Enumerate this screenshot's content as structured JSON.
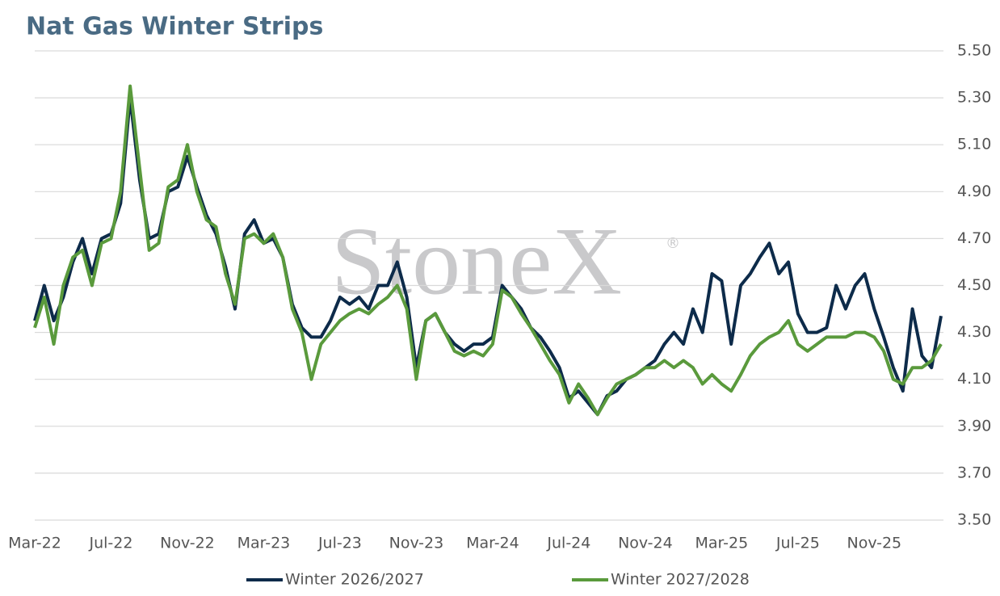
{
  "chart_data": {
    "type": "line",
    "title": "Nat Gas Winter Strips",
    "watermark": {
      "text": "StoneX",
      "mark": "®"
    },
    "categories": [
      "Mar-22",
      null,
      null,
      null,
      null,
      null,
      null,
      null,
      "Jul-22",
      null,
      null,
      null,
      null,
      null,
      null,
      null,
      "Nov-22",
      null,
      null,
      null,
      null,
      null,
      null,
      null,
      "Mar-23",
      null,
      null,
      null,
      null,
      null,
      null,
      null,
      "Jul-23",
      null,
      null,
      null,
      null,
      null,
      null,
      null,
      "Nov-23",
      null,
      null,
      null,
      null,
      null,
      null,
      null,
      "Mar-24",
      null,
      null,
      null,
      null,
      null,
      null,
      null,
      "Jul-24",
      null,
      null,
      null,
      null,
      null,
      null,
      null,
      "Nov-24",
      null,
      null,
      null,
      null,
      null,
      null,
      null,
      "Mar-25",
      null,
      null,
      null,
      null,
      null,
      null,
      null,
      "Jul-25",
      null,
      null,
      null,
      null,
      null,
      null,
      null,
      "Nov-25",
      null,
      null,
      null,
      null,
      null,
      null,
      null
    ],
    "series": [
      {
        "name": "Winter 2026/2027",
        "color": "#0d2b4a",
        "values": [
          4.35,
          4.5,
          4.35,
          4.45,
          4.6,
          4.7,
          4.55,
          4.7,
          4.72,
          4.85,
          5.3,
          4.95,
          4.7,
          4.72,
          4.9,
          4.92,
          5.05,
          4.92,
          4.8,
          4.72,
          4.58,
          4.4,
          4.72,
          4.78,
          4.68,
          4.7,
          4.62,
          4.42,
          4.32,
          4.28,
          4.28,
          4.35,
          4.45,
          4.42,
          4.45,
          4.4,
          4.5,
          4.5,
          4.6,
          4.45,
          4.15,
          4.35,
          4.38,
          4.3,
          4.25,
          4.22,
          4.25,
          4.25,
          4.28,
          4.5,
          4.45,
          4.4,
          4.32,
          4.28,
          4.22,
          4.15,
          4.02,
          4.05,
          4.0,
          3.95,
          4.03,
          4.05,
          4.1,
          4.12,
          4.15,
          4.18,
          4.25,
          4.3,
          4.25,
          4.4,
          4.3,
          4.55,
          4.52,
          4.25,
          4.5,
          4.55,
          4.62,
          4.68,
          4.55,
          4.6,
          4.38,
          4.3,
          4.3,
          4.32,
          4.5,
          4.4,
          4.5,
          4.55,
          4.4,
          4.28,
          4.15,
          4.05,
          4.4,
          4.2,
          4.15,
          4.37
        ]
      },
      {
        "name": "Winter 2027/2028",
        "color": "#5a9a3c",
        "values": [
          4.32,
          4.45,
          4.25,
          4.5,
          4.62,
          4.65,
          4.5,
          4.68,
          4.7,
          4.9,
          5.35,
          5.0,
          4.65,
          4.68,
          4.92,
          4.95,
          5.1,
          4.9,
          4.78,
          4.75,
          4.55,
          4.42,
          4.7,
          4.72,
          4.68,
          4.72,
          4.62,
          4.4,
          4.3,
          4.1,
          4.25,
          4.3,
          4.35,
          4.38,
          4.4,
          4.38,
          4.42,
          4.45,
          4.5,
          4.4,
          4.1,
          4.35,
          4.38,
          4.3,
          4.22,
          4.2,
          4.22,
          4.2,
          4.25,
          4.48,
          4.45,
          4.38,
          4.32,
          4.25,
          4.18,
          4.12,
          4.0,
          4.08,
          4.02,
          3.95,
          4.02,
          4.08,
          4.1,
          4.12,
          4.15,
          4.15,
          4.18,
          4.15,
          4.18,
          4.15,
          4.08,
          4.12,
          4.08,
          4.05,
          4.12,
          4.2,
          4.25,
          4.28,
          4.3,
          4.35,
          4.25,
          4.22,
          4.25,
          4.28,
          4.28,
          4.28,
          4.3,
          4.3,
          4.28,
          4.22,
          4.1,
          4.08,
          4.15,
          4.15,
          4.18,
          4.25
        ]
      }
    ],
    "ylim": [
      3.5,
      5.5
    ],
    "yticks": [
      {
        "value": 3.5,
        "label": "3.50"
      },
      {
        "value": 3.7,
        "label": "3.70"
      },
      {
        "value": 3.9,
        "label": "3.90"
      },
      {
        "value": 4.1,
        "label": "4.10"
      },
      {
        "value": 4.3,
        "label": "4.30"
      },
      {
        "value": 4.5,
        "label": "4.50"
      },
      {
        "value": 4.7,
        "label": "4.70"
      },
      {
        "value": 4.9,
        "label": "4.90"
      },
      {
        "value": 5.1,
        "label": "5.10"
      },
      {
        "value": 5.3,
        "label": "5.30"
      },
      {
        "value": 5.5,
        "label": "5.50"
      }
    ],
    "grid": true,
    "y_axis_side": "right",
    "legend": "bottom"
  }
}
